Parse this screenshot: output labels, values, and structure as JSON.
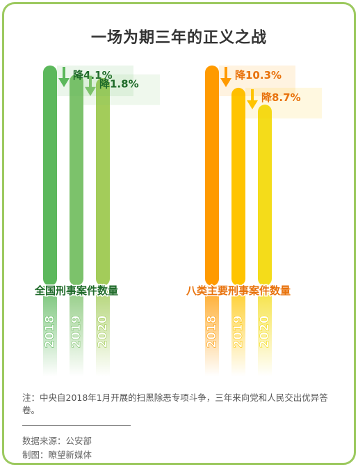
{
  "title": "一场为期三年的正义之战",
  "chart_data": [
    {
      "type": "bar",
      "title": "全国刑事案件数量",
      "categories": [
        "2018",
        "2019",
        "2020"
      ],
      "values": [
        100,
        95.9,
        94.2
      ],
      "value_basis": "2018 = 100",
      "change_labels": [
        "降4.1%",
        "降1.8%"
      ],
      "colors": [
        "#5cb85c",
        "#7cc26b",
        "#a3cc5a"
      ],
      "label_color": "#1f6b2a"
    },
    {
      "type": "bar",
      "title": "八类主要刑事案件数量",
      "categories": [
        "2018",
        "2019",
        "2020"
      ],
      "values": [
        100,
        89.7,
        81.9
      ],
      "value_basis": "2018 = 100",
      "change_labels": [
        "降10.3%",
        "降8.7%"
      ],
      "colors": [
        "#ff9a00",
        "#ffc400",
        "#f4dc1a"
      ],
      "label_color": "#e8720c"
    }
  ],
  "note": "注：中央自2018年1月开展的扫黑除恶专项斗争，三年来向党和人民交出优异答卷。",
  "source": "数据来源：公安部",
  "credit": "制图：瞭望新媒体"
}
